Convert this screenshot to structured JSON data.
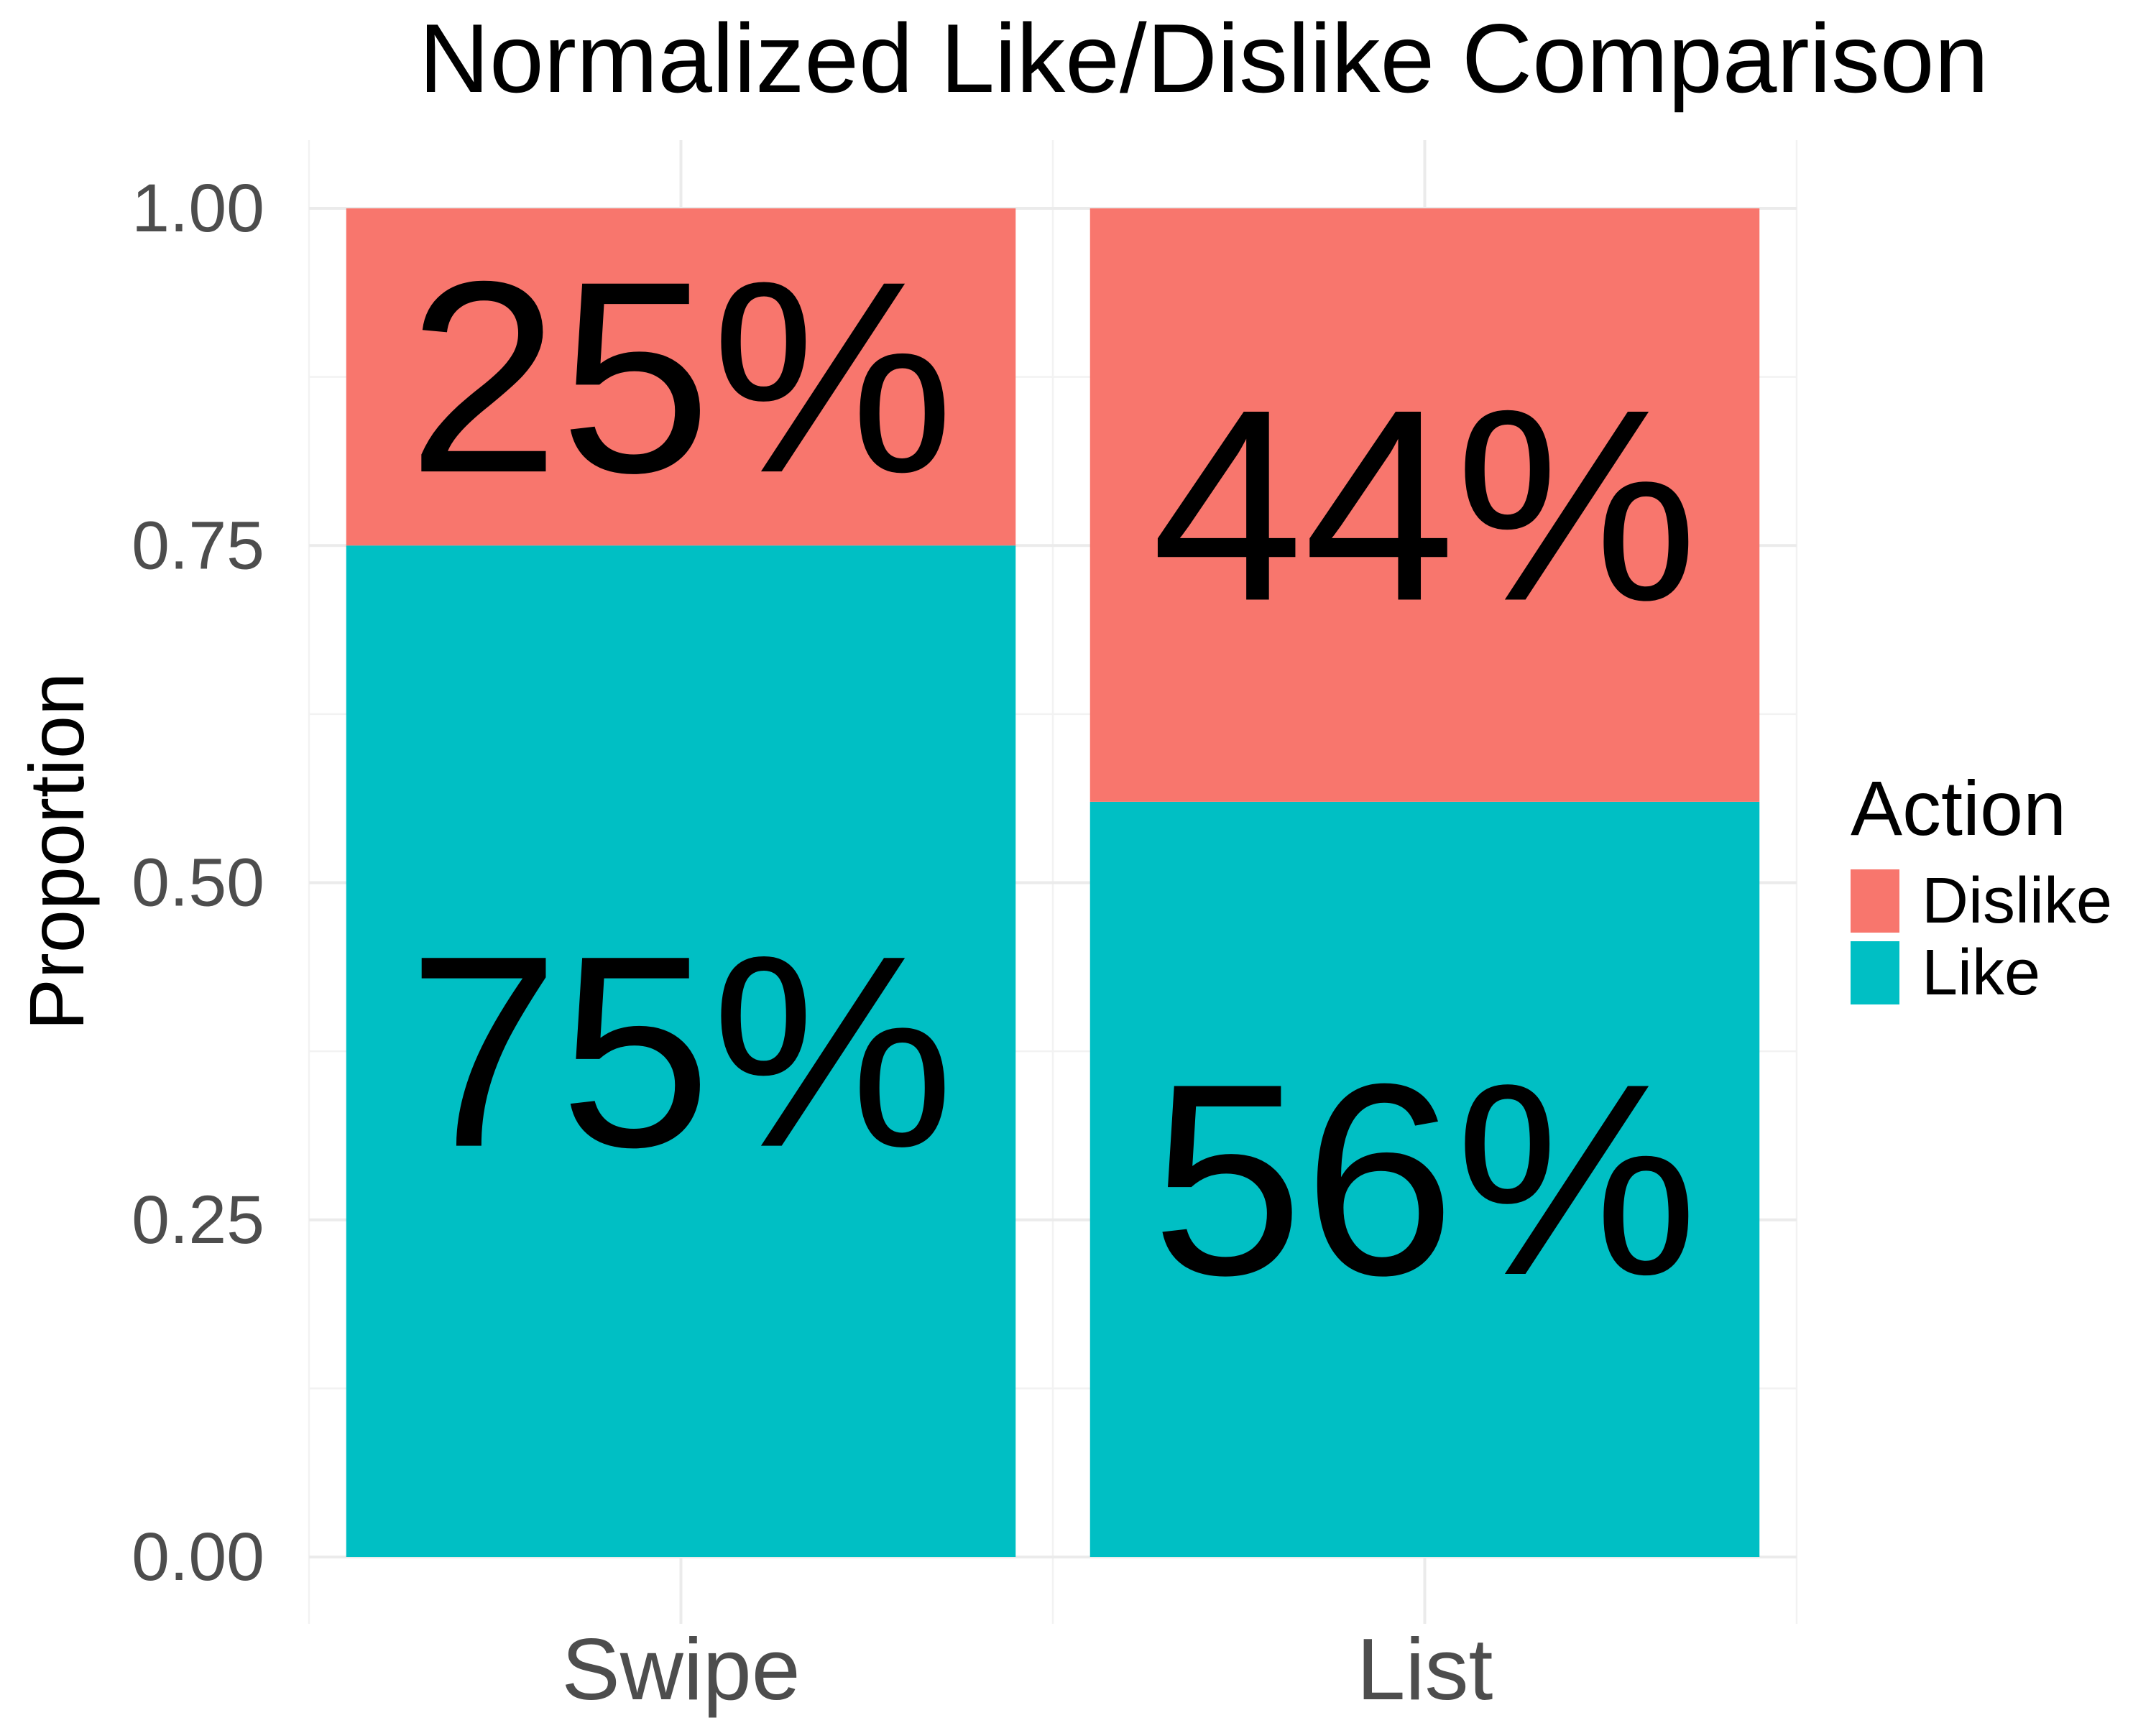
{
  "chart_data": {
    "type": "bar",
    "stacked": true,
    "title": "Normalized Like/Dislike Comparison",
    "xlabel": "",
    "ylabel": "Proportion",
    "categories": [
      "Swipe",
      "List"
    ],
    "series": [
      {
        "name": "Like",
        "values": [
          0.75,
          0.56
        ],
        "labels": [
          "75%",
          "56%"
        ],
        "color": "#00BFC4"
      },
      {
        "name": "Dislike",
        "values": [
          0.25,
          0.44
        ],
        "labels": [
          "25%",
          "44%"
        ],
        "color": "#F8766D"
      }
    ],
    "ylim": [
      0,
      1
    ],
    "yticks": [
      0,
      0.25,
      0.5,
      0.75,
      1
    ],
    "ytick_labels": [
      "0.00",
      "0.25",
      "0.50",
      "0.75",
      "1.00"
    ],
    "grid": true,
    "legend": {
      "title": "Action",
      "placement": "right",
      "entries": [
        {
          "name": "Dislike",
          "color": "#F8766D"
        },
        {
          "name": "Like",
          "color": "#00BFC4"
        }
      ]
    }
  }
}
